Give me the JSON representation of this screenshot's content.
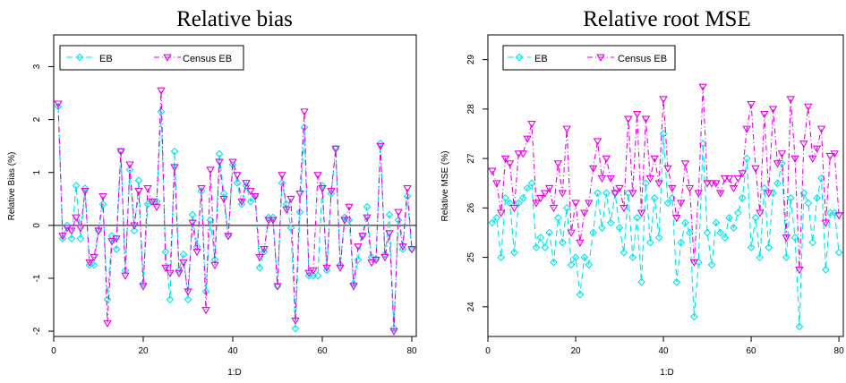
{
  "chart_data": [
    {
      "type": "line",
      "title": "Relative bias",
      "xlabel": "1:D",
      "ylabel": "Relative Bias (%)",
      "xlim": [
        0,
        81
      ],
      "ylim": [
        -2.1,
        3.6
      ],
      "xticks": [
        0,
        20,
        40,
        60,
        80
      ],
      "yticks": [
        -2,
        -1,
        0,
        1,
        2,
        3
      ],
      "hline": 0,
      "legend": "top-left",
      "x": [
        1,
        2,
        3,
        4,
        5,
        6,
        7,
        8,
        9,
        10,
        11,
        12,
        13,
        14,
        15,
        16,
        17,
        18,
        19,
        20,
        21,
        22,
        23,
        24,
        25,
        26,
        27,
        28,
        29,
        30,
        31,
        32,
        33,
        34,
        35,
        36,
        37,
        38,
        39,
        40,
        41,
        42,
        43,
        44,
        45,
        46,
        47,
        48,
        49,
        50,
        51,
        52,
        53,
        54,
        55,
        56,
        57,
        58,
        59,
        60,
        61,
        62,
        63,
        64,
        65,
        66,
        67,
        68,
        69,
        70,
        71,
        72,
        73,
        74,
        75,
        76,
        77,
        78,
        79,
        80
      ],
      "series": [
        {
          "name": "EB",
          "color": "#00e5ee",
          "marker": "diamond",
          "dash": "7,4",
          "values": [
            2.25,
            -0.25,
            0.0,
            -0.25,
            0.75,
            -0.25,
            0.7,
            -0.75,
            -0.75,
            -0.1,
            0.4,
            -1.4,
            -0.2,
            -0.45,
            1.4,
            -0.85,
            1.05,
            -0.1,
            0.85,
            -1.1,
            0.4,
            0.45,
            0.45,
            2.15,
            -0.5,
            -1.4,
            1.4,
            -0.85,
            -0.55,
            -1.4,
            0.2,
            -0.4,
            0.65,
            -1.25,
            0.1,
            -0.65,
            1.35,
            0.6,
            -0.2,
            1.15,
            0.8,
            0.4,
            0.75,
            0.45,
            0.55,
            -0.8,
            -0.5,
            0.15,
            0.15,
            -1.15,
            0.8,
            0.4,
            -0.05,
            -1.95,
            0.25,
            1.85,
            -0.95,
            -0.95,
            -0.95,
            0.75,
            -0.85,
            0.6,
            1.45,
            -0.75,
            0.15,
            0.1,
            -1.1,
            -0.65,
            -0.2,
            0.35,
            -0.6,
            -0.65,
            1.55,
            -0.55,
            0.2,
            -1.95,
            0.1,
            -0.45,
            0.55,
            -0.45
          ]
        },
        {
          "name": "Census EB",
          "color": "#e600e6",
          "marker": "triangle-down",
          "dash": "6,3,1,3",
          "values": [
            2.3,
            -0.2,
            -0.05,
            -0.1,
            0.15,
            -0.05,
            0.65,
            -0.7,
            -0.6,
            -0.1,
            0.55,
            -1.85,
            -0.3,
            -0.25,
            1.4,
            -0.95,
            1.15,
            0.0,
            0.65,
            -1.15,
            0.7,
            0.45,
            0.35,
            2.55,
            -0.8,
            -0.9,
            1.1,
            -0.9,
            -0.7,
            -1.25,
            0.05,
            -0.5,
            0.7,
            -1.6,
            1.05,
            -0.75,
            1.2,
            0.5,
            -0.2,
            1.2,
            0.95,
            0.45,
            0.8,
            0.65,
            0.55,
            -0.6,
            -0.45,
            0.1,
            0.1,
            -1.15,
            0.95,
            0.3,
            0.5,
            -1.8,
            0.6,
            2.15,
            -0.9,
            -0.85,
            0.95,
            0.7,
            -0.8,
            0.65,
            1.45,
            -0.8,
            0.1,
            0.35,
            -1.15,
            -0.4,
            -0.2,
            0.15,
            -0.7,
            -0.65,
            1.5,
            -0.6,
            -0.15,
            -2.0,
            0.25,
            -0.4,
            0.7,
            -0.45
          ]
        }
      ]
    },
    {
      "type": "line",
      "title": "Relative root MSE",
      "xlabel": "1:D",
      "ylabel": "Relative MSE (%)",
      "xlim": [
        0,
        81
      ],
      "ylim": [
        23.4,
        29.5
      ],
      "xticks": [
        0,
        20,
        40,
        60,
        80
      ],
      "yticks": [
        24,
        25,
        26,
        27,
        28,
        29
      ],
      "legend": "top-left",
      "x": [
        1,
        2,
        3,
        4,
        5,
        6,
        7,
        8,
        9,
        10,
        11,
        12,
        13,
        14,
        15,
        16,
        17,
        18,
        19,
        20,
        21,
        22,
        23,
        24,
        25,
        26,
        27,
        28,
        29,
        30,
        31,
        32,
        33,
        34,
        35,
        36,
        37,
        38,
        39,
        40,
        41,
        42,
        43,
        44,
        45,
        46,
        47,
        48,
        49,
        50,
        51,
        52,
        53,
        54,
        55,
        56,
        57,
        58,
        59,
        60,
        61,
        62,
        63,
        64,
        65,
        66,
        67,
        68,
        69,
        70,
        71,
        72,
        73,
        74,
        75,
        76,
        77,
        78,
        79,
        80
      ],
      "series": [
        {
          "name": "EB",
          "color": "#00e5ee",
          "marker": "diamond",
          "dash": "7,4",
          "values": [
            25.7,
            25.8,
            25.0,
            26.2,
            26.1,
            25.1,
            26.1,
            26.2,
            26.4,
            26.5,
            25.2,
            25.4,
            25.2,
            25.5,
            24.9,
            25.8,
            25.3,
            26.0,
            24.85,
            25.0,
            24.25,
            25.0,
            24.85,
            25.5,
            26.3,
            25.6,
            26.3,
            25.7,
            26.3,
            25.6,
            25.1,
            26.3,
            25.0,
            25.8,
            24.5,
            26.5,
            25.3,
            26.2,
            25.4,
            27.5,
            26.1,
            26.2,
            24.5,
            25.3,
            25.7,
            25.5,
            23.8,
            24.9,
            27.3,
            25.5,
            24.85,
            25.7,
            25.5,
            25.4,
            25.8,
            25.6,
            25.9,
            26.2,
            27.0,
            25.2,
            25.8,
            25.0,
            26.4,
            25.2,
            26.3,
            26.5,
            26.9,
            25.0,
            26.2,
            25.4,
            23.6,
            26.3,
            26.1,
            25.3,
            26.2,
            26.6,
            24.75,
            25.9,
            25.9,
            25.1
          ]
        },
        {
          "name": "Census EB",
          "color": "#e600e6",
          "marker": "triangle-down",
          "dash": "6,3,1,3",
          "values": [
            26.75,
            26.5,
            25.9,
            27.0,
            26.9,
            26.0,
            27.1,
            27.1,
            27.4,
            27.7,
            26.1,
            26.2,
            26.3,
            26.4,
            26.0,
            26.9,
            26.3,
            27.6,
            25.5,
            26.1,
            25.3,
            25.9,
            26.1,
            26.8,
            27.35,
            26.6,
            27.0,
            26.6,
            26.3,
            26.4,
            26.0,
            27.8,
            26.3,
            27.9,
            25.9,
            27.8,
            26.6,
            27.0,
            26.5,
            28.2,
            26.8,
            26.4,
            25.8,
            26.1,
            26.9,
            26.4,
            24.9,
            26.3,
            28.45,
            26.5,
            26.5,
            26.5,
            26.3,
            26.6,
            26.6,
            26.4,
            26.6,
            26.7,
            27.6,
            28.1,
            26.8,
            25.9,
            27.9,
            26.3,
            28.0,
            26.9,
            27.1,
            25.4,
            28.2,
            27.0,
            24.75,
            27.3,
            28.05,
            27.0,
            27.2,
            27.6,
            25.7,
            27.05,
            27.1,
            25.85
          ]
        }
      ]
    }
  ]
}
